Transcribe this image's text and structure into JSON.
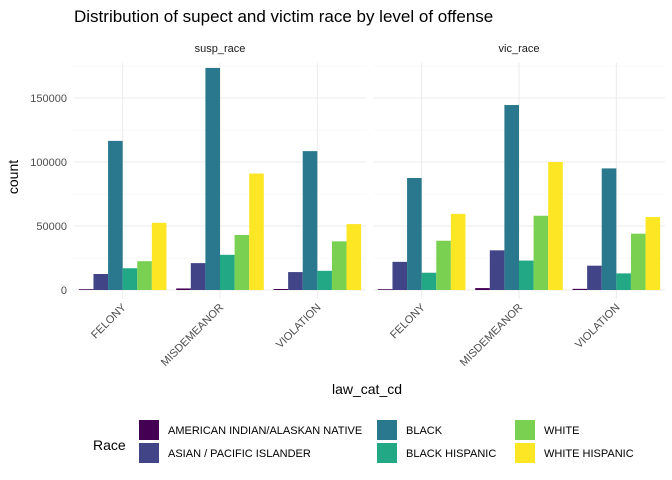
{
  "chart_data": {
    "type": "bar",
    "title": "Distribution of supect and victim race by level of offense",
    "xlabel": "law_cat_cd",
    "ylabel": "count",
    "ylim": [
      0,
      180000
    ],
    "yticks": [
      0,
      50000,
      100000,
      150000
    ],
    "yticklabels": [
      "0",
      "50000",
      "100000",
      "150000"
    ],
    "categories": [
      "FELONY",
      "MISDEMEANOR",
      "VIOLATION"
    ],
    "legend": {
      "title": "Race",
      "placement": "bottom"
    },
    "series": [
      {
        "name": "AMERICAN INDIAN/ALASKAN NATIVE",
        "color": "#440154"
      },
      {
        "name": "ASIAN / PACIFIC ISLANDER",
        "color": "#414487"
      },
      {
        "name": "BLACK",
        "color": "#2a788e"
      },
      {
        "name": "BLACK HISPANIC",
        "color": "#22a884"
      },
      {
        "name": "WHITE",
        "color": "#7ad151"
      },
      {
        "name": "WHITE HISPANIC",
        "color": "#fde725"
      }
    ],
    "panels": [
      {
        "strip": "susp_race",
        "values": {
          "FELONY": [
            600,
            12500,
            116500,
            17000,
            22500,
            52500
          ],
          "MISDEMEANOR": [
            1200,
            21000,
            173500,
            27500,
            43000,
            91000
          ],
          "VIOLATION": [
            800,
            14000,
            108500,
            15000,
            38000,
            51500
          ]
        }
      },
      {
        "strip": "vic_race",
        "values": {
          "FELONY": [
            600,
            22000,
            87500,
            13500,
            38500,
            59500
          ],
          "MISDEMEANOR": [
            1500,
            31000,
            144500,
            23000,
            58000,
            100000
          ],
          "VIOLATION": [
            900,
            19000,
            95000,
            13000,
            44000,
            57000
          ]
        }
      }
    ]
  }
}
